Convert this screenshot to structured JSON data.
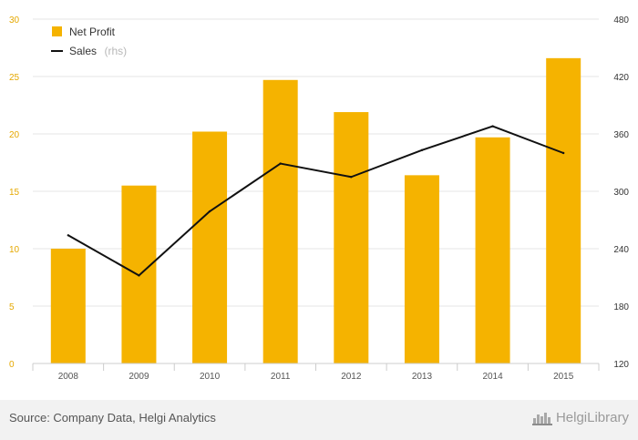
{
  "chart_data": {
    "type": "bar",
    "categories": [
      "2008",
      "2009",
      "2010",
      "2011",
      "2012",
      "2013",
      "2014",
      "2015"
    ],
    "series": [
      {
        "name": "Net Profit",
        "type": "bar",
        "axis": "left",
        "color": "#f5b300",
        "values": [
          10.0,
          15.5,
          20.2,
          24.7,
          21.9,
          16.4,
          19.7,
          26.6
        ]
      },
      {
        "name": "Sales",
        "name_suffix": "(rhs)",
        "type": "line",
        "axis": "right",
        "color": "#111111",
        "values": [
          254,
          212,
          279,
          329,
          315,
          343,
          368,
          340
        ]
      }
    ],
    "ylim_left": [
      0,
      30
    ],
    "yticks_left": [
      0,
      5,
      10,
      15,
      20,
      25,
      30
    ],
    "ylim_right": [
      120,
      480
    ],
    "yticks_right": [
      120,
      180,
      240,
      300,
      360,
      420,
      480
    ],
    "grid": true,
    "legend_position": "top-left"
  },
  "footer": {
    "source": "Source: Company Data, Helgi Analytics",
    "brand": "HelgiLibrary"
  }
}
